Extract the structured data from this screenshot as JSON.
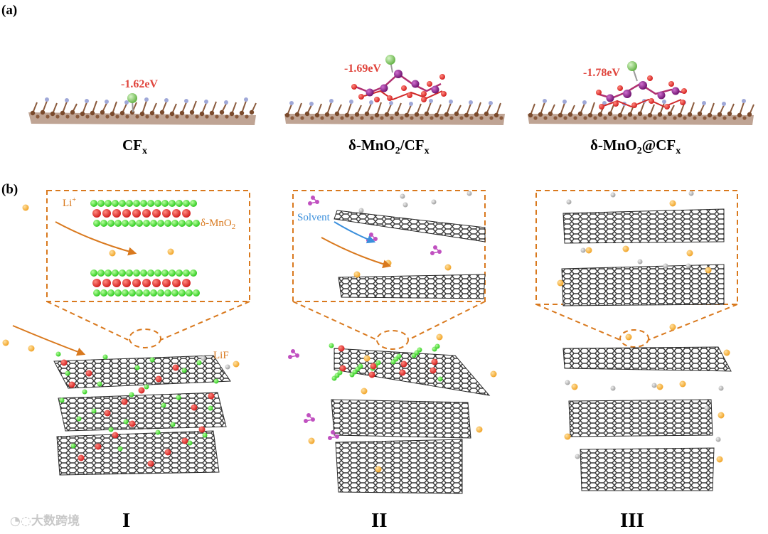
{
  "panel_a": {
    "label": "(a)",
    "structures": [
      {
        "name_main": "CF",
        "name_sub": "x",
        "energy": "-1.62eV"
      },
      {
        "name_main": "δ-MnO",
        "name_sub": "2",
        "name_mid": "/CF",
        "name_sub2": "x",
        "energy": "-1.69eV"
      },
      {
        "name_main": "δ-MnO",
        "name_sub": "2",
        "name_mid": "@CF",
        "name_sub2": "x",
        "energy": "-1.78eV"
      }
    ]
  },
  "panel_b": {
    "label": "(b)",
    "li_ion": "Li",
    "li_charge": "+",
    "mno2_main": "δ-MnO",
    "mno2_sub": "2",
    "solvent": "Solvent",
    "lif": "LiF",
    "stages": [
      "I",
      "II",
      "III"
    ]
  },
  "watermark": "大数跨境",
  "colors": {
    "energy_red": "#e0443c",
    "carbon_brown": "#8a5a3c",
    "fluorine_blue": "#9fa8d8",
    "lithium_green": "#6cc24a",
    "manganese_purple": "#8a1e8a",
    "oxygen_red": "#e02a2a",
    "graphene_gray": "#3a3a3a",
    "layer_green": "#33dd22",
    "arrow_orange": "#d9791e",
    "solvent_blue": "#3a8fdc",
    "li_ion_orange": "#f4a52a"
  }
}
